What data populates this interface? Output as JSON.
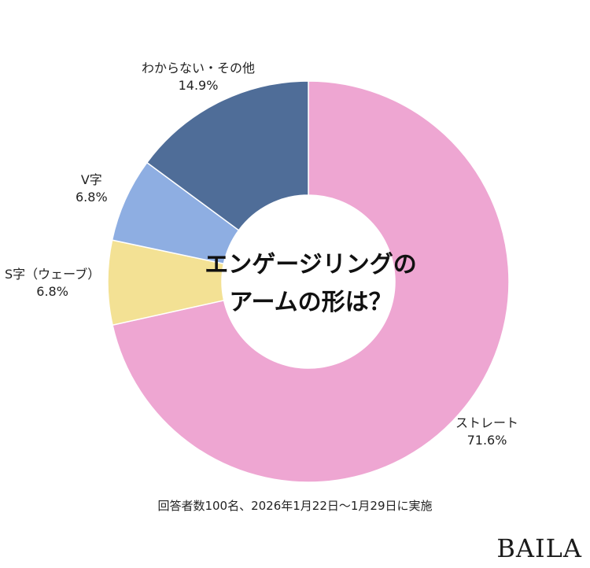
{
  "chart_data": {
    "type": "pie",
    "title": "エンゲージリングのアーム の形は？",
    "title_lines": [
      "エンゲージリングの",
      "アームの形は？"
    ],
    "slices": [
      {
        "label": "ストレート",
        "value": 71.6,
        "value_text": "71.6%",
        "color": "#EEA6D2"
      },
      {
        "label": "S字（ウェーブ）",
        "value": 6.8,
        "value_text": "6.8%",
        "color": "#F3E194"
      },
      {
        "label": "V字",
        "value": 6.8,
        "value_text": "6.8%",
        "color": "#8EAEE2"
      },
      {
        "label": "わからない・その他",
        "value": 14.9,
        "value_text": "14.9%",
        "color": "#4F6D98"
      }
    ],
    "note": "回答者数100名、2026年1月22日〜1月29日に実施"
  },
  "brand": {
    "logo": "BAILA"
  }
}
